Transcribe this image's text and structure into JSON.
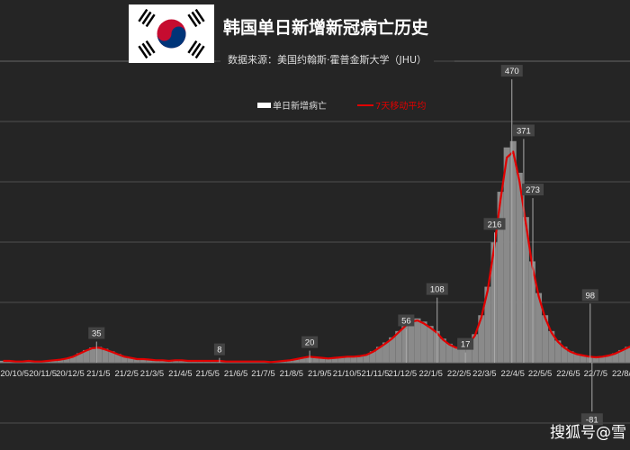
{
  "title": "韩国单日新增新冠病亡历史",
  "subtitle": "数据来源：美国约翰斯·霍普金斯大学（JHU）",
  "watermark": "搜狐号@雪",
  "flag_icon": "south-korea-flag",
  "colors": {
    "background": "#252525",
    "bars": "#8a8a8a",
    "average": "#e00000",
    "grid": "#555555"
  },
  "chart_data": {
    "type": "bar+line",
    "legend": [
      {
        "name": "单日新增病亡",
        "color": "#ffffff"
      },
      {
        "name": "7天移动平均",
        "color": "#e00000"
      }
    ],
    "legend_placement": "top-center",
    "x_start": "2020-09-19",
    "x_step_days": 7,
    "x_ticks": [
      "20/10/5",
      "20/11/5",
      "20/12/5",
      "21/1/5",
      "21/2/5",
      "21/3/5",
      "21/4/5",
      "21/5/5",
      "21/6/5",
      "21/7/5",
      "21/8/5",
      "21/9/5",
      "21/10/5",
      "21/11/5",
      "21/12/5",
      "22/1/5",
      "22/2/5",
      "22/3/5",
      "22/4/5",
      "22/5/5",
      "22/6/5",
      "22/7/5",
      "22/8/5"
    ],
    "ylim": [
      -100,
      500
    ],
    "grid": true,
    "weekly_average": [
      3,
      3,
      2,
      2,
      3,
      2,
      2,
      3,
      4,
      5,
      7,
      10,
      15,
      20,
      24,
      25,
      22,
      18,
      14,
      10,
      8,
      6,
      6,
      5,
      4,
      4,
      3,
      4,
      4,
      3,
      3,
      3,
      3,
      3,
      3,
      2,
      2,
      2,
      2,
      2,
      2,
      2,
      1,
      2,
      3,
      4,
      6,
      8,
      10,
      9,
      8,
      7,
      8,
      9,
      10,
      10,
      11,
      13,
      18,
      25,
      32,
      40,
      50,
      60,
      68,
      70,
      65,
      58,
      50,
      38,
      30,
      25,
      24,
      30,
      45,
      75,
      120,
      190,
      270,
      340,
      350,
      300,
      230,
      160,
      110,
      75,
      50,
      35,
      25,
      18,
      14,
      12,
      10,
      9,
      10,
      12,
      15,
      20,
      25,
      30
    ],
    "annotations": [
      {
        "date": "2021-01-03",
        "value": 35
      },
      {
        "date": "2021-05-18",
        "value": 8
      },
      {
        "date": "2021-08-25",
        "value": 20
      },
      {
        "date": "2021-12-09",
        "value": 56
      },
      {
        "date": "2022-01-12",
        "value": 108
      },
      {
        "date": "2022-02-12",
        "value": 17
      },
      {
        "date": "2022-03-16",
        "value": 216
      },
      {
        "date": "2022-04-04",
        "value": 470
      },
      {
        "date": "2022-04-17",
        "value": 371
      },
      {
        "date": "2022-04-27",
        "value": 273
      },
      {
        "date": "2022-06-29",
        "value": 98
      },
      {
        "date": "2022-07-01",
        "value": -81
      }
    ]
  }
}
